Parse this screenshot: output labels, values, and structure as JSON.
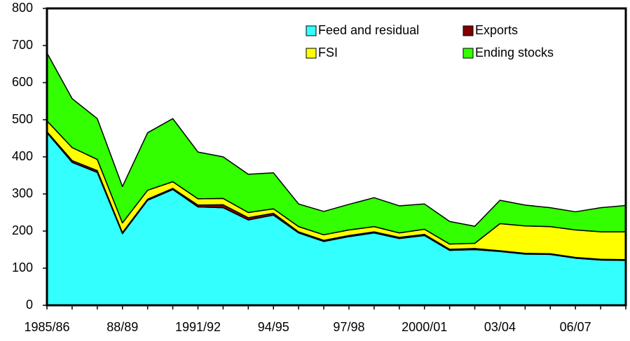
{
  "chart_data": {
    "type": "area",
    "stacked": true,
    "categories": [
      "1985/86",
      null,
      null,
      "88/89",
      null,
      null,
      "1991/92",
      null,
      null,
      "94/95",
      null,
      null,
      "97/98",
      null,
      null,
      "2000/01",
      null,
      null,
      "03/04",
      null,
      null,
      "06/07",
      null,
      null
    ],
    "series": [
      {
        "name": "Feed and residual",
        "color": "#33ffff",
        "values": [
          465,
          385,
          358,
          193,
          283,
          312,
          265,
          263,
          230,
          243,
          195,
          172,
          185,
          195,
          180,
          188,
          148,
          150,
          145,
          138,
          137,
          127,
          122,
          121
        ]
      },
      {
        "name": "Exports",
        "color": "#800000",
        "values": [
          3,
          5,
          5,
          3,
          3,
          3,
          5,
          8,
          6,
          5,
          3,
          3,
          3,
          3,
          3,
          3,
          3,
          3,
          2,
          2,
          2,
          2,
          2,
          2
        ]
      },
      {
        "name": "FSI",
        "color": "#ffff00",
        "values": [
          29,
          35,
          30,
          26,
          24,
          18,
          17,
          17,
          14,
          12,
          14,
          15,
          15,
          14,
          12,
          14,
          14,
          14,
          73,
          74,
          73,
          74,
          74,
          75
        ]
      },
      {
        "name": "Ending stocks",
        "color": "#33ff00",
        "values": [
          183,
          132,
          110,
          98,
          155,
          170,
          126,
          112,
          103,
          97,
          61,
          63,
          69,
          78,
          73,
          68,
          61,
          46,
          63,
          56,
          51,
          49,
          65,
          71
        ]
      }
    ],
    "ylim": [
      0,
      800
    ],
    "yticks": [
      0,
      100,
      200,
      300,
      400,
      500,
      600,
      700,
      800
    ]
  }
}
